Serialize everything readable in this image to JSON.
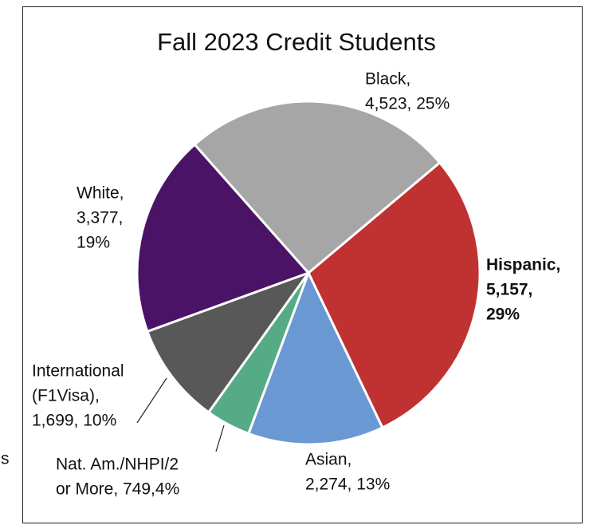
{
  "chart_data": {
    "type": "pie",
    "title": "Fall 2023 Credit Students",
    "categories": [
      "Hispanic",
      "Asian",
      "Nat. Am./NHPI/2 or More",
      "International (F1Visa)",
      "White",
      "Black"
    ],
    "values": [
      5157,
      2274,
      749,
      1699,
      3377,
      4523
    ],
    "value_labels": [
      [
        "Hispanic,",
        "5,157,",
        "29%"
      ],
      [
        "Asian,",
        "2,274, 13%"
      ],
      [
        "Nat. Am./NHPI/2",
        "or More, 749,4%"
      ],
      [
        "International",
        "(F1Visa),",
        "1,699, 10%"
      ],
      [
        "White,",
        "3,377,",
        "19%"
      ],
      [
        "Black,",
        "4,523, 25%"
      ]
    ],
    "colors": [
      "#c03232",
      "#6a98d3",
      "#55ab86",
      "#585858",
      "#4a1366",
      "#a6a6a6"
    ],
    "clipped_text": "s"
  }
}
